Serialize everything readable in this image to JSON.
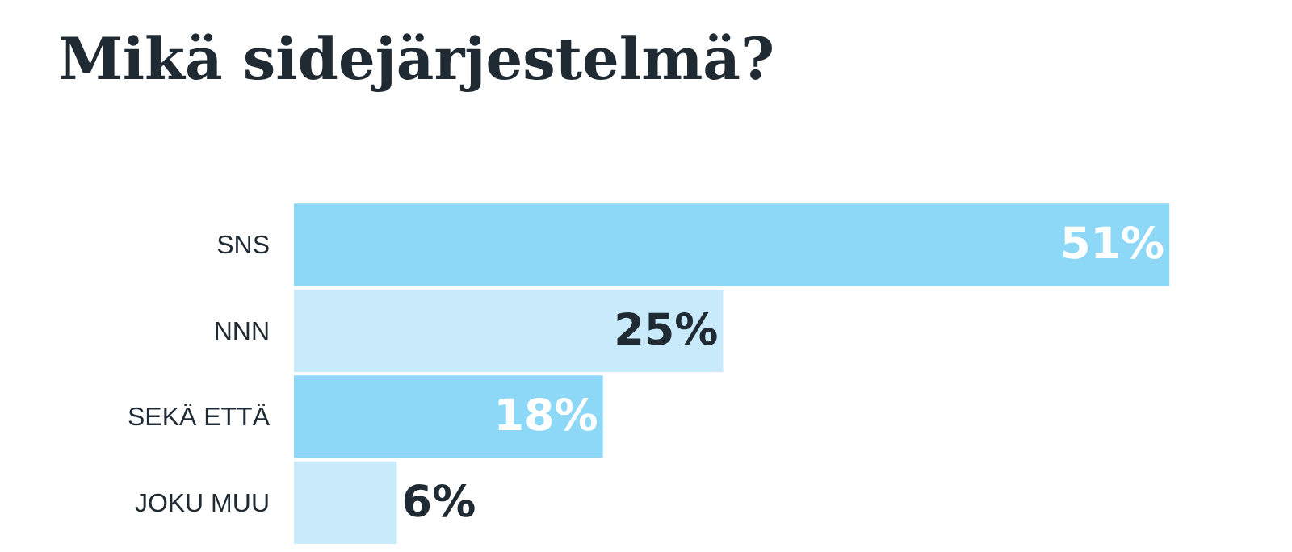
{
  "chart_data": {
    "type": "bar",
    "orientation": "horizontal",
    "title": "Mikä sidejärjestelmä?",
    "categories": [
      "SNS",
      "NNN",
      "SEKÄ ETTÄ",
      "JOKU MUU"
    ],
    "values": [
      51,
      25,
      18,
      6
    ],
    "colors": [
      "#8dd7f7",
      "#c9eafa",
      "#8dd7f7",
      "#c9eafa"
    ],
    "value_labels": [
      "51%",
      "25%",
      "18%",
      "6%"
    ]
  }
}
